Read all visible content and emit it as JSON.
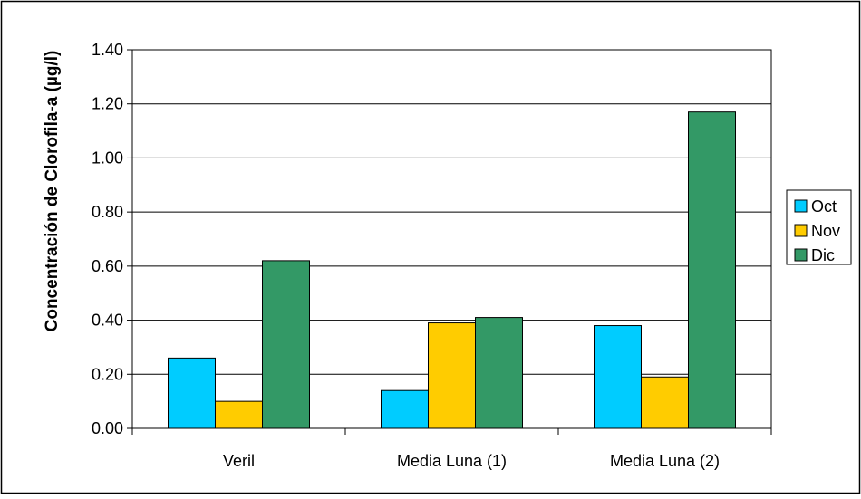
{
  "chart_data": {
    "type": "bar",
    "title": "",
    "xlabel": "",
    "ylabel": "Concentración de Clorofila-a (µg/l)",
    "ylim": [
      0,
      1.4
    ],
    "yticks": [
      "0.00",
      "0.20",
      "0.40",
      "0.60",
      "0.80",
      "1.00",
      "1.20",
      "1.40"
    ],
    "categories": [
      "Veril",
      "Media Luna (1)",
      "Media Luna (2)"
    ],
    "series": [
      {
        "name": "Oct",
        "color": "#00CCFF",
        "values": [
          0.26,
          0.14,
          0.38
        ]
      },
      {
        "name": "Nov",
        "color": "#FFCC00",
        "values": [
          0.1,
          0.39,
          0.19
        ]
      },
      {
        "name": "Dic",
        "color": "#339966",
        "values": [
          0.62,
          0.41,
          1.17
        ]
      }
    ],
    "grid": true,
    "legend_position": "right"
  }
}
